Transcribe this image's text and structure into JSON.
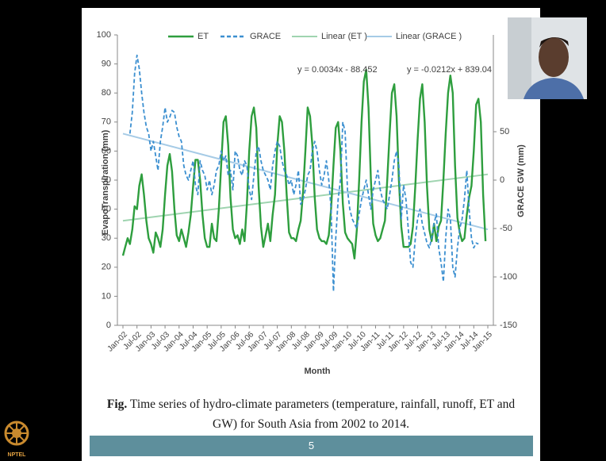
{
  "chart_data": {
    "type": "line",
    "y_label": "EvapoTranspiration  (mm)",
    "y2_label": "GRACE GW (mm)",
    "x_label": "Month",
    "categories": [
      "Jan-02",
      null,
      null,
      null,
      null,
      null,
      "Jul-02",
      null,
      null,
      null,
      null,
      null,
      "Jan-03",
      null,
      null,
      null,
      null,
      null,
      "Jul-03",
      null,
      null,
      null,
      null,
      null,
      "Jan-04",
      null,
      null,
      null,
      null,
      null,
      "Jul-04",
      null,
      null,
      null,
      null,
      null,
      "Jan-05",
      null,
      null,
      null,
      null,
      null,
      "Jul-05",
      null,
      null,
      null,
      null,
      null,
      "Jan-06",
      null,
      null,
      null,
      null,
      null,
      "Jul-06",
      null,
      null,
      null,
      null,
      null,
      "Jan-07",
      null,
      null,
      null,
      null,
      null,
      "Jul-07",
      null,
      null,
      null,
      null,
      null,
      "Jan-08",
      null,
      null,
      null,
      null,
      null,
      "Jul-08",
      null,
      null,
      null,
      null,
      null,
      "Jan-09",
      null,
      null,
      null,
      null,
      null,
      "Jul-09",
      null,
      null,
      null,
      null,
      null,
      "Jan-10",
      null,
      null,
      null,
      null,
      null,
      "Jul-10",
      null,
      null,
      null,
      null,
      null,
      "Jan-11",
      null,
      null,
      null,
      null,
      null,
      "Jul-11",
      null,
      null,
      null,
      null,
      null,
      "Jan-12",
      null,
      null,
      null,
      null,
      null,
      "Jul-12",
      null,
      null,
      null,
      null,
      null,
      "Jan-13",
      null,
      null,
      null,
      null,
      null,
      "Jul-13",
      null,
      null,
      null,
      null,
      null,
      "Jan-14",
      null,
      null,
      null,
      null,
      null,
      "Jul-14",
      null,
      null,
      null,
      null,
      null,
      "Jan-15"
    ],
    "series": [
      {
        "name": "ET",
        "color": "#2e9e3e",
        "axis": "y",
        "dash": false,
        "values": [
          24,
          27,
          30,
          28,
          33,
          41,
          40,
          48,
          52,
          45,
          36,
          30,
          28,
          25,
          32,
          30,
          27,
          33,
          45,
          55,
          59,
          53,
          40,
          31,
          29,
          33,
          30,
          27,
          32,
          38,
          48,
          57,
          57,
          50,
          38,
          30,
          27,
          27,
          35,
          30,
          29,
          40,
          55,
          70,
          72,
          62,
          44,
          33,
          30,
          31,
          28,
          33,
          29,
          42,
          60,
          72,
          75,
          68,
          48,
          34,
          27,
          31,
          35,
          29,
          38,
          45,
          62,
          72,
          70,
          60,
          45,
          32,
          30,
          30,
          29,
          33,
          36,
          46,
          60,
          75,
          72,
          62,
          44,
          33,
          30,
          29,
          29,
          28,
          31,
          40,
          55,
          68,
          70,
          60,
          42,
          32,
          30,
          29,
          28,
          23,
          33,
          50,
          70,
          84,
          88,
          75,
          50,
          35,
          31,
          29,
          30,
          33,
          36,
          50,
          66,
          80,
          83,
          72,
          50,
          34,
          27,
          27,
          27,
          28,
          34,
          48,
          64,
          78,
          83,
          70,
          48,
          33,
          29,
          35,
          29,
          34,
          36,
          50,
          66,
          80,
          86,
          80,
          55,
          37,
          32,
          29,
          30,
          38,
          44,
          48,
          60,
          76,
          78,
          70,
          45,
          29,
          null
        ]
      },
      {
        "name": "GRACE",
        "color": "#3b8fd0",
        "axis": "y2",
        "dash": true,
        "values": [
          null,
          null,
          null,
          48,
          70,
          110,
          129,
          115,
          90,
          70,
          55,
          48,
          30,
          40,
          25,
          10,
          40,
          55,
          75,
          60,
          65,
          72,
          70,
          55,
          45,
          40,
          15,
          5,
          0,
          10,
          20,
          -5,
          -15,
          20,
          10,
          5,
          -10,
          0,
          -15,
          -5,
          10,
          15,
          30,
          20,
          25,
          5,
          10,
          -10,
          30,
          25,
          10,
          5,
          20,
          15,
          -10,
          -20,
          5,
          30,
          35,
          20,
          10,
          5,
          0,
          -10,
          15,
          30,
          40,
          35,
          20,
          10,
          5,
          -5,
          0,
          -15,
          -5,
          10,
          -25,
          -20,
          -10,
          5,
          10,
          30,
          40,
          30,
          10,
          -5,
          5,
          20,
          0,
          -30,
          -115,
          -60,
          -20,
          0,
          60,
          50,
          -10,
          -30,
          -40,
          -45,
          -50,
          -35,
          -20,
          -10,
          0,
          -15,
          -30,
          -10,
          0,
          10,
          -10,
          -20,
          -25,
          -30,
          -15,
          0,
          20,
          30,
          15,
          -40,
          -5,
          -20,
          -50,
          -85,
          -90,
          -60,
          -40,
          -30,
          -45,
          -55,
          -65,
          -70,
          -60,
          -45,
          -35,
          -70,
          -85,
          -105,
          -60,
          -30,
          -40,
          -90,
          -100,
          -70,
          -50,
          -40,
          -20,
          10,
          -30,
          -60,
          -70,
          -65,
          -66,
          null,
          null,
          null,
          null
        ]
      }
    ],
    "trendlines": [
      {
        "name": "Linear (ET )",
        "color": "#9fd4b0",
        "axis": "y",
        "start": 36,
        "end": 52,
        "equation": "y = 0.0034x - 88.452"
      },
      {
        "name": "Linear (GRACE )",
        "color": "#a6cbe6",
        "axis": "y2",
        "start": 48,
        "end": -51,
        "equation": "y = -0.0212x + 839.04"
      }
    ],
    "ylim": [
      0,
      100
    ],
    "yticks": [
      0,
      10,
      20,
      30,
      40,
      50,
      60,
      70,
      80,
      90,
      100
    ],
    "y2lim": [
      -150,
      150
    ],
    "y2ticks": [
      -150,
      -100,
      -50,
      0,
      50
    ],
    "grid": false,
    "legend": "top"
  },
  "caption": {
    "lead": "Fig.",
    "text": "Time series of hydro-climate parameters (temperature, rainfall, runoff, ET and GW) for South Asia from 2002 to 2014."
  },
  "page_number": "5",
  "logo": "NPTEL"
}
